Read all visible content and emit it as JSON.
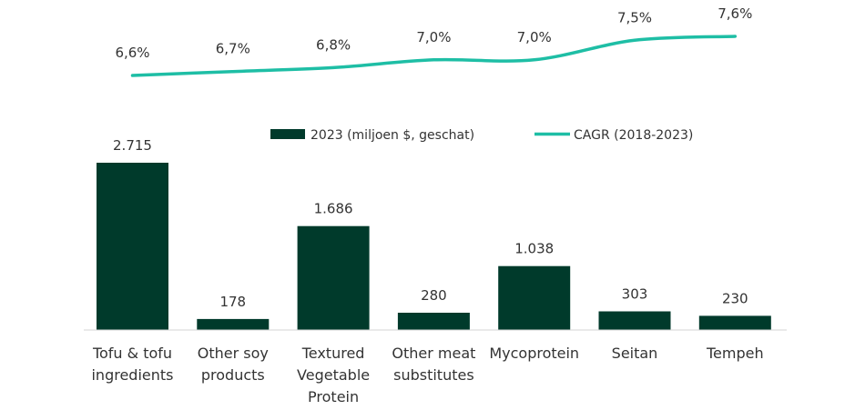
{
  "chart_data": {
    "type": "bar+line",
    "categories": [
      [
        "Tofu & tofu",
        "ingredients"
      ],
      [
        "Other soy",
        "products"
      ],
      [
        "Textured",
        "Vegetable",
        "Protein"
      ],
      [
        "Other meat",
        "substitutes"
      ],
      [
        "Mycoprotein"
      ],
      [
        "Seitan"
      ],
      [
        "Tempeh"
      ]
    ],
    "series": [
      {
        "name": "2023 (miljoen $, geschat)",
        "kind": "bar",
        "color": "#003a2b",
        "values": [
          2715,
          178,
          1686,
          280,
          1038,
          303,
          230
        ],
        "labels": [
          "2.715",
          "178",
          "1.686",
          "280",
          "1.038",
          "303",
          "230"
        ]
      },
      {
        "name": "CAGR (2018-2023)",
        "kind": "line",
        "color": "#1ebea5",
        "values": [
          6.6,
          6.7,
          6.8,
          7.0,
          7.0,
          7.5,
          7.6
        ],
        "labels": [
          "6,6%",
          "6,7%",
          "6,8%",
          "7,0%",
          "7,0%",
          "7,5%",
          "7,6%"
        ]
      }
    ],
    "title": "",
    "xlabel": "",
    "ylabel": "",
    "legend_position": "top-center",
    "grid": false
  }
}
